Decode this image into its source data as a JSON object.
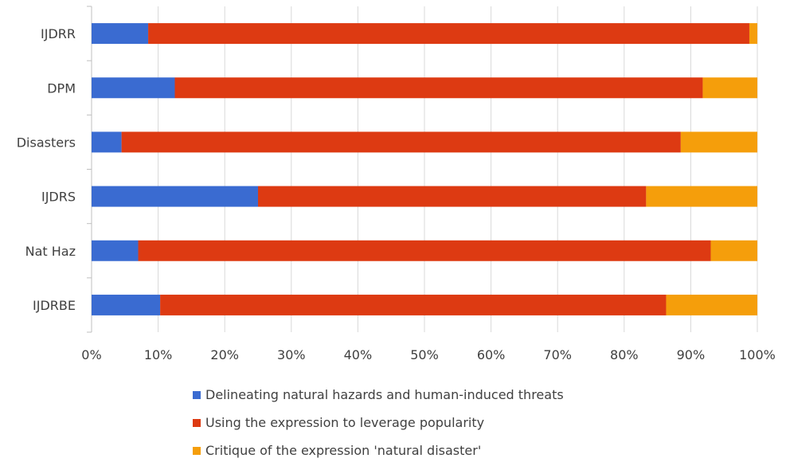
{
  "chart_data": {
    "type": "bar",
    "orientation": "horizontal",
    "stacked": "percent",
    "categories": [
      "IJDRR",
      "DPM",
      "Disasters",
      "IJDRS",
      "Nat Haz",
      "IJDRBE"
    ],
    "series": [
      {
        "name": "Delineating natural hazards and human-induced threats",
        "color": "#3A6BD1",
        "values": [
          8.5,
          12.5,
          4.5,
          25,
          7,
          10.3
        ]
      },
      {
        "name": "Using the expression to leverage popularity",
        "color": "#DD3A12",
        "values": [
          90.3,
          79.3,
          84.0,
          58.3,
          86,
          76
        ]
      },
      {
        "name": "Critique of the expression 'natural disaster'",
        "color": "#F59E0B",
        "values": [
          1.2,
          8.2,
          11.5,
          16.7,
          7,
          13.7
        ]
      }
    ],
    "x_ticks": [
      "0%",
      "10%",
      "20%",
      "30%",
      "40%",
      "50%",
      "60%",
      "70%",
      "80%",
      "90%",
      "100%"
    ],
    "xlim": [
      0,
      100
    ],
    "grid": true,
    "legend_position": "bottom"
  }
}
